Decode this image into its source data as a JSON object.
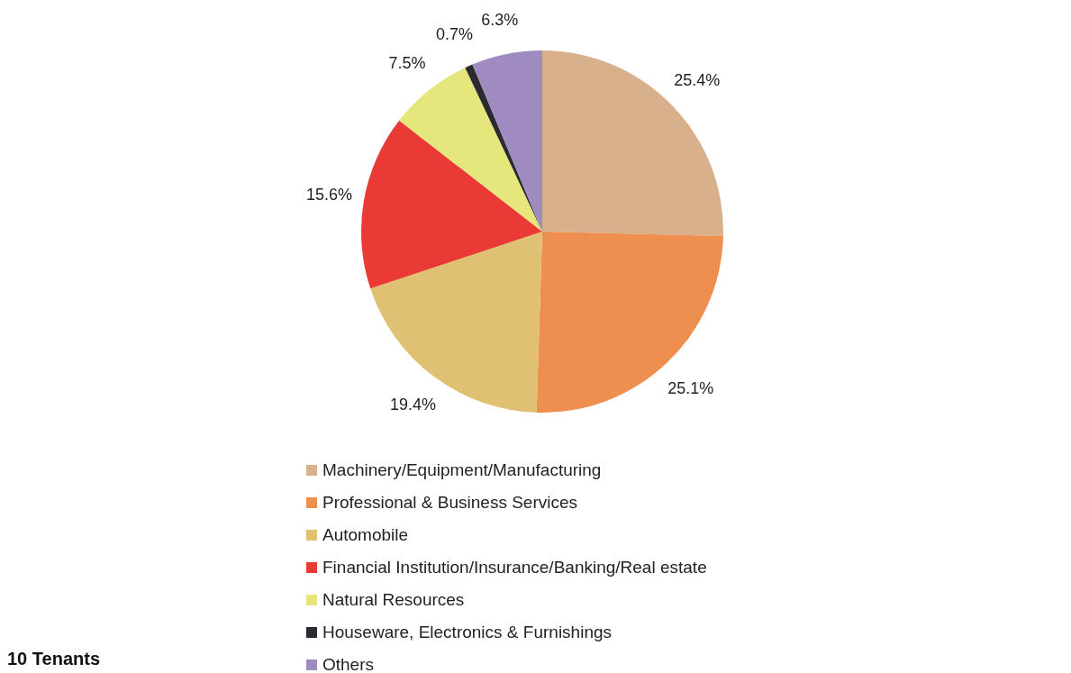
{
  "chart_data": {
    "type": "pie",
    "categories": [
      "Machinery/Equipment/Manufacturing",
      "Professional & Business Services",
      "Automobile",
      "Financial Institution/Insurance/Banking/Real estate",
      "Natural Resources",
      "Houseware, Electronics & Furnishings",
      "Others"
    ],
    "values": [
      25.4,
      25.1,
      19.4,
      15.6,
      7.5,
      0.7,
      6.3
    ],
    "value_labels": [
      "25.4%",
      "25.1%",
      "19.4%",
      "15.6%",
      "7.5%",
      "0.7%",
      "6.3%"
    ],
    "colors": [
      "#d9b08c",
      "#ee8f50",
      "#e0c073",
      "#ea3a36",
      "#e5e67c",
      "#2a2a30",
      "#9f8bc0"
    ],
    "legend": "bottom",
    "annotations": [
      "10 Tenants"
    ]
  }
}
